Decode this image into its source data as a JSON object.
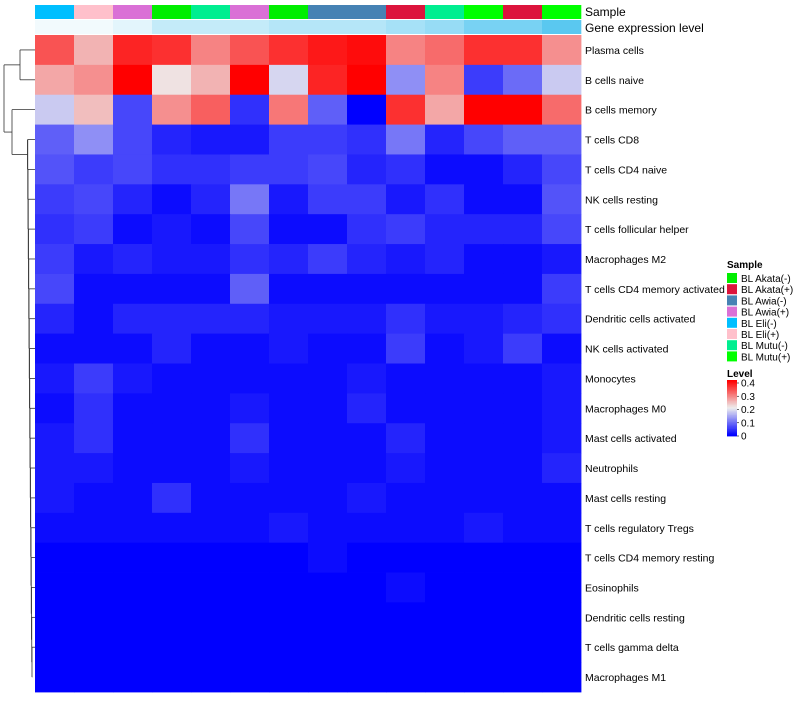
{
  "chart_data": {
    "type": "heatmap",
    "annotation_labels": [
      "Sample",
      "Gene expression level"
    ],
    "rows": [
      "Plasma cells",
      "B cells naive",
      "B cells memory",
      "T cells CD8",
      "T cells CD4 naive",
      "NK cells resting",
      "T cells follicular helper",
      "Macrophages M2",
      "T cells CD4 memory activated",
      "Dendritic cells activated",
      "NK cells activated",
      "Monocytes",
      "Macrophages M0",
      "Mast cells activated",
      "Neutrophils",
      "Mast cells resting",
      "T cells regulatory  Tregs",
      "T cells CD4 memory resting",
      "Eosinophils",
      "Dendritic cells resting",
      "T cells gamma delta",
      "Macrophages M1"
    ],
    "column_samples": [
      "BL Eli(-)",
      "BL Eli(+)",
      "BL Awia(+)",
      "BL Akata(-)",
      "BL Mutu(-)",
      "BL Awia(+)",
      "BL Akata(-)",
      "BL Awia(-)",
      "BL Awia(-)",
      "BL Akata(+)",
      "BL Mutu(-)",
      "BL Mutu(+)",
      "BL Akata(+)",
      "BL Mutu(+)"
    ],
    "expression_annotation": [
      0.02,
      0.02,
      0.03,
      0.05,
      0.05,
      0.05,
      0.06,
      0.06,
      0.06,
      0.07,
      0.08,
      0.1,
      0.1,
      0.12
    ],
    "values": [
      [
        0.33,
        0.25,
        0.37,
        0.36,
        0.29,
        0.33,
        0.36,
        0.38,
        0.39,
        0.29,
        0.31,
        0.36,
        0.36,
        0.28
      ],
      [
        0.26,
        0.28,
        0.4,
        0.21,
        0.25,
        0.4,
        0.18,
        0.37,
        0.4,
        0.12,
        0.29,
        0.05,
        0.09,
        0.17
      ],
      [
        0.17,
        0.24,
        0.06,
        0.28,
        0.32,
        0.04,
        0.3,
        0.08,
        0.0,
        0.36,
        0.26,
        0.4,
        0.4,
        0.31
      ],
      [
        0.08,
        0.12,
        0.06,
        0.03,
        0.02,
        0.02,
        0.05,
        0.05,
        0.04,
        0.1,
        0.03,
        0.06,
        0.08,
        0.08
      ],
      [
        0.07,
        0.05,
        0.06,
        0.04,
        0.04,
        0.05,
        0.05,
        0.06,
        0.03,
        0.04,
        0.01,
        0.01,
        0.03,
        0.06
      ],
      [
        0.05,
        0.06,
        0.03,
        0.01,
        0.03,
        0.1,
        0.02,
        0.05,
        0.05,
        0.02,
        0.04,
        0.01,
        0.01,
        0.07
      ],
      [
        0.04,
        0.05,
        0.01,
        0.02,
        0.01,
        0.06,
        0.01,
        0.01,
        0.04,
        0.05,
        0.03,
        0.03,
        0.03,
        0.06
      ],
      [
        0.05,
        0.02,
        0.03,
        0.02,
        0.02,
        0.04,
        0.03,
        0.05,
        0.03,
        0.02,
        0.03,
        0.01,
        0.01,
        0.02
      ],
      [
        0.06,
        0.01,
        0.01,
        0.01,
        0.01,
        0.08,
        0.01,
        0.01,
        0.01,
        0.01,
        0.01,
        0.01,
        0.01,
        0.05
      ],
      [
        0.03,
        0.01,
        0.03,
        0.03,
        0.03,
        0.03,
        0.02,
        0.02,
        0.02,
        0.04,
        0.02,
        0.02,
        0.03,
        0.04
      ],
      [
        0.01,
        0.01,
        0.01,
        0.03,
        0.01,
        0.01,
        0.02,
        0.01,
        0.01,
        0.05,
        0.01,
        0.02,
        0.05,
        0.01
      ],
      [
        0.02,
        0.05,
        0.02,
        0.01,
        0.01,
        0.01,
        0.01,
        0.01,
        0.02,
        0.01,
        0.01,
        0.01,
        0.01,
        0.02
      ],
      [
        0.01,
        0.04,
        0.01,
        0.01,
        0.01,
        0.02,
        0.01,
        0.01,
        0.03,
        0.01,
        0.01,
        0.01,
        0.01,
        0.02
      ],
      [
        0.02,
        0.04,
        0.01,
        0.01,
        0.01,
        0.04,
        0.01,
        0.01,
        0.01,
        0.03,
        0.01,
        0.01,
        0.01,
        0.02
      ],
      [
        0.02,
        0.02,
        0.01,
        0.01,
        0.01,
        0.02,
        0.01,
        0.01,
        0.01,
        0.02,
        0.01,
        0.01,
        0.01,
        0.03
      ],
      [
        0.02,
        0.01,
        0.01,
        0.04,
        0.01,
        0.01,
        0.01,
        0.01,
        0.02,
        0.01,
        0.01,
        0.01,
        0.01,
        0.01
      ],
      [
        0.01,
        0.01,
        0.01,
        0.01,
        0.01,
        0.01,
        0.02,
        0.01,
        0.01,
        0.01,
        0.01,
        0.02,
        0.01,
        0.01
      ],
      [
        0.0,
        0.0,
        0.0,
        0.0,
        0.0,
        0.0,
        0.0,
        0.01,
        0.0,
        0.0,
        0.0,
        0.0,
        0.0,
        0.0
      ],
      [
        0.0,
        0.0,
        0.0,
        0.0,
        0.0,
        0.0,
        0.0,
        0.0,
        0.0,
        0.01,
        0.0,
        0.0,
        0.0,
        0.0
      ],
      [
        0.0,
        0.0,
        0.0,
        0.0,
        0.0,
        0.0,
        0.0,
        0.0,
        0.0,
        0.0,
        0.0,
        0.0,
        0.0,
        0.0
      ],
      [
        0.0,
        0.0,
        0.0,
        0.0,
        0.0,
        0.0,
        0.0,
        0.0,
        0.0,
        0.0,
        0.0,
        0.0,
        0.0,
        0.0
      ],
      [
        0.0,
        0.0,
        0.0,
        0.0,
        0.0,
        0.0,
        0.0,
        0.0,
        0.0,
        0.0,
        0.0,
        0.0,
        0.0,
        0.0
      ]
    ],
    "color_scale": {
      "min": 0,
      "max": 0.4,
      "low_color": "#0000ff",
      "mid_color": "#eeeeee",
      "high_color": "#ff0000",
      "mid_value": 0.2
    },
    "legend_sample": {
      "title": "Sample",
      "items": [
        {
          "label": "BL Akata(-)",
          "color": "#00ee00"
        },
        {
          "label": "BL Akata(+)",
          "color": "#dc143c"
        },
        {
          "label": "BL Awia(-)",
          "color": "#4682b4"
        },
        {
          "label": "BL Awia(+)",
          "color": "#da70d6"
        },
        {
          "label": "BL Eli(-)",
          "color": "#00bfff"
        },
        {
          "label": "BL Eli(+)",
          "color": "#ffc0cb"
        },
        {
          "label": "BL Mutu(-)",
          "color": "#00ee90"
        },
        {
          "label": "BL Mutu(+)",
          "color": "#00ff00"
        }
      ]
    },
    "legend_level": {
      "title": "Level",
      "ticks": [
        "0.4",
        "0.3",
        "0.2",
        "0.1",
        "0"
      ]
    },
    "expression_colors": {
      "low": "#f2fafd",
      "high": "#5ac8f0"
    },
    "legend_placement": "right",
    "grid": false
  }
}
